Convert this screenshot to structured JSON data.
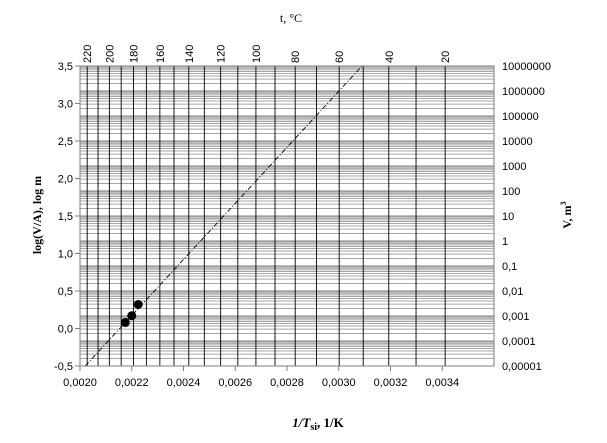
{
  "chart_data": {
    "type": "scatter",
    "title": "",
    "xlabel_main": "1/T",
    "xlabel_sub": "si",
    "xlabel_tail": ", 1/K",
    "ylabel": "log(V/A),  log  m",
    "x2label": "t, °C",
    "y2label_main": "V, m",
    "y2label_sup": "3",
    "xlim": [
      0.002,
      0.0036
    ],
    "ylim": [
      -0.5,
      3.5
    ],
    "x_ticks": [
      0.002,
      0.0022,
      0.0024,
      0.0026,
      0.0028,
      0.003,
      0.0032,
      0.0034
    ],
    "x_tick_labels": [
      "0,0020",
      "0,0022",
      "0,0024",
      "0,0026",
      "0,0028",
      "0,0030",
      "0,0032",
      "0,0034"
    ],
    "y_ticks": [
      -0.5,
      0,
      0.5,
      1,
      1.5,
      2,
      2.5,
      3,
      3.5
    ],
    "y_tick_labels": [
      "-0,5",
      "0,0",
      "0,5",
      "1,0",
      "1,5",
      "2,0",
      "2,5",
      "3,0",
      "3,5"
    ],
    "top_axis": {
      "labeled_celsius": [
        220,
        200,
        180,
        160,
        140,
        120,
        100,
        80,
        60,
        40,
        20
      ],
      "gridlines_celsius": [
        220,
        210,
        200,
        190,
        180,
        170,
        160,
        150,
        140,
        130,
        120,
        110,
        100,
        90,
        80,
        70,
        60,
        50,
        40,
        30,
        20
      ]
    },
    "right_axis": {
      "labels": [
        "10000000",
        "1000000",
        "100000",
        "10000",
        "1000",
        "100",
        "10",
        "1",
        "0,1",
        "0,01",
        "0,001",
        "0,0001",
        "0,00001"
      ],
      "log_min": -5,
      "log_max": 7
    },
    "points": [
      {
        "x": 0.002175,
        "y": 0.08
      },
      {
        "x": 0.0022,
        "y": 0.17
      },
      {
        "x": 0.002225,
        "y": 0.32
      }
    ],
    "trendline": {
      "x": [
        0.00202,
        0.00309
      ],
      "y": [
        -0.5,
        3.5
      ]
    },
    "grid": true
  }
}
